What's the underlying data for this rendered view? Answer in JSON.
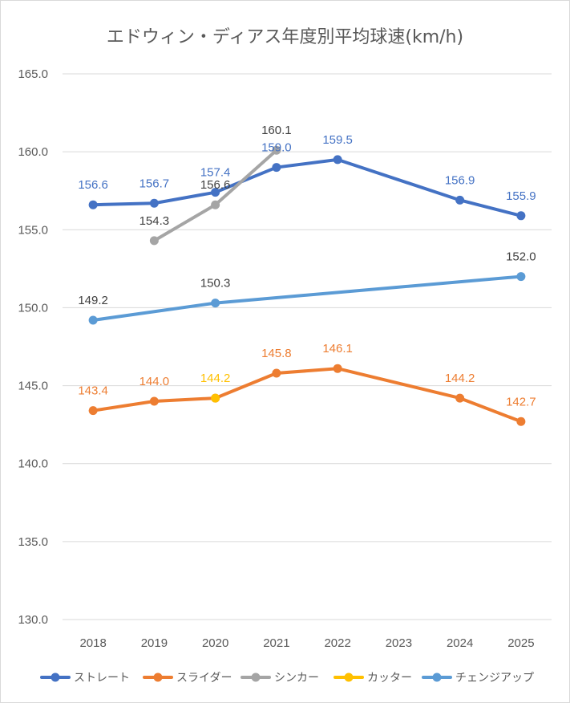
{
  "chart_data": {
    "type": "line",
    "title": "エドウィン・ディアス年度別平均球速(km/h)",
    "categories": [
      "2018",
      "2019",
      "2020",
      "2021",
      "2022",
      "2023",
      "2024",
      "2025"
    ],
    "ylim": [
      130.0,
      165.0
    ],
    "yticks": [
      "130.0",
      "135.0",
      "140.0",
      "145.0",
      "150.0",
      "155.0",
      "160.0",
      "165.0"
    ],
    "grid": "horizontal",
    "legend_position": "bottom",
    "series": [
      {
        "name": "ストレート",
        "color": "#4472C4",
        "label_color": "#4472C4",
        "values": [
          156.6,
          156.7,
          157.4,
          159.0,
          159.5,
          null,
          156.9,
          155.9
        ],
        "labels": [
          "156.6",
          "156.7",
          "157.4",
          "159.0",
          "159.5",
          null,
          "156.9",
          "155.9"
        ]
      },
      {
        "name": "スライダー",
        "color": "#ED7D31",
        "label_color": "#ED7D31",
        "values": [
          143.4,
          144.0,
          144.2,
          145.8,
          146.1,
          null,
          144.2,
          142.7
        ],
        "labels": [
          "143.4",
          "144.0",
          null,
          "145.8",
          "146.1",
          null,
          "144.2",
          "142.7"
        ]
      },
      {
        "name": "シンカー",
        "color": "#A5A5A5",
        "label_color": "#404040",
        "values": [
          null,
          154.3,
          156.6,
          160.1,
          null,
          null,
          null,
          null
        ],
        "labels": [
          null,
          "154.3",
          "156.6",
          "160.1",
          null,
          null,
          null,
          null
        ]
      },
      {
        "name": "カッター",
        "color": "#FFC000",
        "label_color": "#FFC000",
        "values": [
          null,
          null,
          144.2,
          null,
          null,
          null,
          null,
          null
        ],
        "labels": [
          null,
          null,
          "144.2",
          null,
          null,
          null,
          null,
          null
        ]
      },
      {
        "name": "チェンジアップ",
        "color": "#5B9BD5",
        "label_color": "#404040",
        "values": [
          149.2,
          null,
          150.3,
          null,
          null,
          null,
          null,
          152.0
        ],
        "labels": [
          "149.2",
          null,
          "150.3",
          null,
          null,
          null,
          null,
          "152.0"
        ]
      }
    ]
  }
}
